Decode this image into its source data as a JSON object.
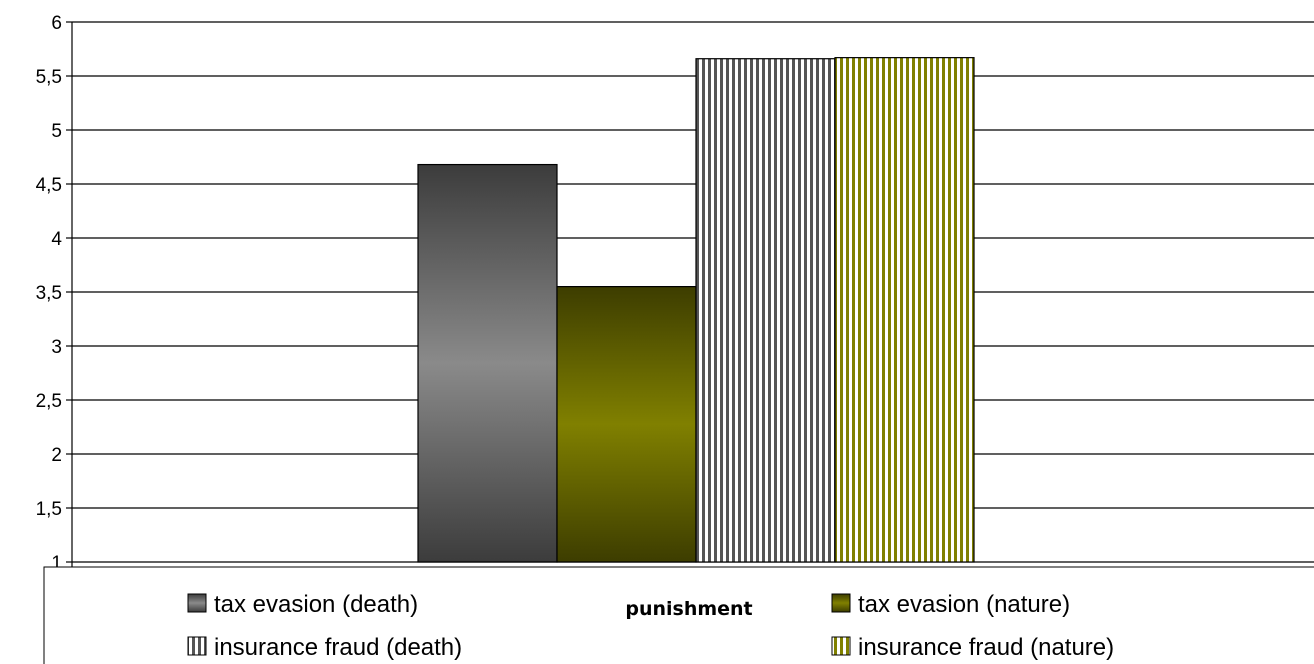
{
  "chart_data": {
    "type": "bar",
    "categories": [
      ""
    ],
    "series": [
      {
        "name": "tax evasion (death)",
        "values": [
          4.68
        ],
        "color": "#555555",
        "pattern": "gradient"
      },
      {
        "name": "tax evasion (nature)",
        "values": [
          3.55
        ],
        "color": "#808000",
        "pattern": "gradient"
      },
      {
        "name": "insurance fraud (death)",
        "values": [
          5.66
        ],
        "color": "#555555",
        "pattern": "vertical-stripes"
      },
      {
        "name": "insurance fraud (nature)",
        "values": [
          5.67
        ],
        "color": "#808000",
        "pattern": "vertical-stripes"
      }
    ],
    "xlabel": "punishment",
    "ylabel": "",
    "ylim": [
      1,
      6
    ],
    "yticks": [
      1,
      1.5,
      2,
      2.5,
      3,
      3.5,
      4,
      4.5,
      5,
      5.5,
      6
    ],
    "ytick_labels": [
      "1",
      "1,5",
      "2",
      "2,5",
      "3",
      "3,5",
      "4",
      "4,5",
      "5",
      "5,5",
      "6"
    ],
    "grid": true,
    "legend_position": "bottom"
  }
}
